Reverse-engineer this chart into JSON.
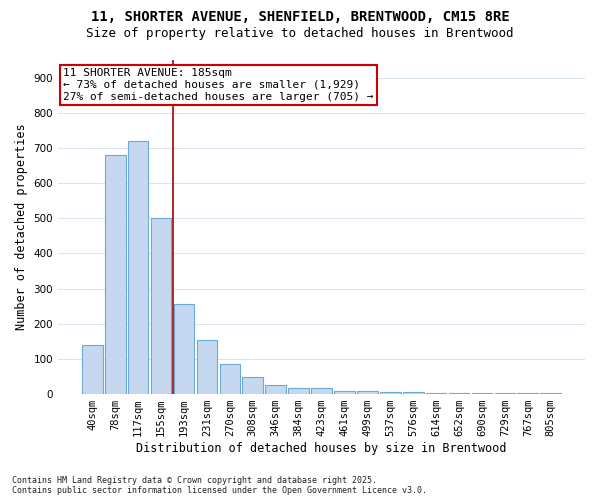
{
  "title_line1": "11, SHORTER AVENUE, SHENFIELD, BRENTWOOD, CM15 8RE",
  "title_line2": "Size of property relative to detached houses in Brentwood",
  "xlabel": "Distribution of detached houses by size in Brentwood",
  "ylabel": "Number of detached properties",
  "categories": [
    "40sqm",
    "78sqm",
    "117sqm",
    "155sqm",
    "193sqm",
    "231sqm",
    "270sqm",
    "308sqm",
    "346sqm",
    "384sqm",
    "423sqm",
    "461sqm",
    "499sqm",
    "537sqm",
    "576sqm",
    "614sqm",
    "652sqm",
    "690sqm",
    "729sqm",
    "767sqm",
    "805sqm"
  ],
  "values": [
    140,
    680,
    720,
    500,
    255,
    155,
    85,
    48,
    27,
    17,
    17,
    10,
    10,
    5,
    5,
    2,
    2,
    2,
    2,
    2,
    2
  ],
  "bar_color": "#c5d8f0",
  "bar_edge_color": "#6aaad4",
  "vline_color": "#aa0000",
  "vline_x_index": 4,
  "annotation_box_text": "11 SHORTER AVENUE: 185sqm\n← 73% of detached houses are smaller (1,929)\n27% of semi-detached houses are larger (705) →",
  "annotation_box_color": "#cc0000",
  "annotation_box_facecolor": "white",
  "footnote": "Contains HM Land Registry data © Crown copyright and database right 2025.\nContains public sector information licensed under the Open Government Licence v3.0.",
  "plot_bg_color": "white",
  "fig_bg_color": "white",
  "ylim": [
    0,
    950
  ],
  "yticks": [
    0,
    100,
    200,
    300,
    400,
    500,
    600,
    700,
    800,
    900
  ],
  "grid_color": "#d8e4f0",
  "title_fontsize": 10,
  "subtitle_fontsize": 9,
  "axis_label_fontsize": 8.5,
  "tick_fontsize": 7.5,
  "annotation_fontsize": 8,
  "footnote_fontsize": 6
}
